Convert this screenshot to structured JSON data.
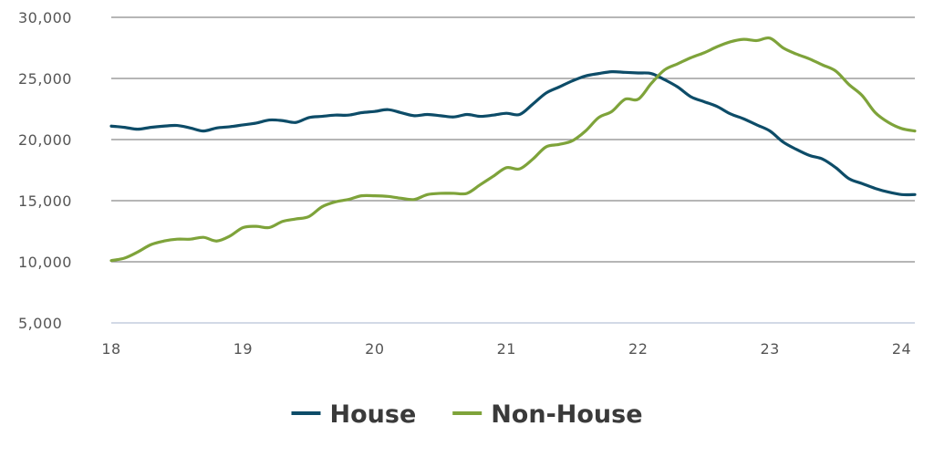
{
  "chart_data": {
    "type": "line",
    "title": "",
    "xlabel": "",
    "ylabel": "",
    "x_ticks": [
      18,
      19,
      20,
      21,
      22,
      23,
      24
    ],
    "x_tick_labels": [
      "18",
      "19",
      "20",
      "21",
      "22",
      "23",
      "24"
    ],
    "y_ticks": [
      5000,
      10000,
      15000,
      20000,
      25000,
      30000
    ],
    "y_tick_labels": [
      "5,000",
      "10,000",
      "15,000",
      "20,000",
      "25,000",
      "30,000"
    ],
    "xlim": [
      18,
      24.1
    ],
    "ylim": [
      5000,
      30000
    ],
    "grid": true,
    "legend_position": "bottom-center",
    "series": [
      {
        "name": "House",
        "color": "#0d4c68",
        "x": [
          18.0,
          18.1,
          18.2,
          18.3,
          18.4,
          18.5,
          18.6,
          18.7,
          18.8,
          18.9,
          19.0,
          19.1,
          19.2,
          19.3,
          19.4,
          19.5,
          19.6,
          19.7,
          19.8,
          19.9,
          20.0,
          20.1,
          20.2,
          20.3,
          20.4,
          20.5,
          20.6,
          20.7,
          20.8,
          20.9,
          21.0,
          21.1,
          21.2,
          21.3,
          21.4,
          21.5,
          21.6,
          21.7,
          21.8,
          21.9,
          22.0,
          22.1,
          22.2,
          22.3,
          22.4,
          22.5,
          22.6,
          22.7,
          22.8,
          22.9,
          23.0,
          23.1,
          23.2,
          23.3,
          23.4,
          23.5,
          23.6,
          23.7,
          23.8,
          23.9,
          24.0,
          24.1
        ],
        "y": [
          21100,
          21000,
          20850,
          21000,
          21100,
          21150,
          20950,
          20700,
          20950,
          21050,
          21200,
          21350,
          21600,
          21550,
          21400,
          21800,
          21900,
          22000,
          22000,
          22200,
          22300,
          22450,
          22200,
          21950,
          22050,
          21950,
          21850,
          22050,
          21900,
          22000,
          22150,
          22050,
          22900,
          23800,
          24300,
          24800,
          25200,
          25400,
          25550,
          25500,
          25450,
          25400,
          24900,
          24300,
          23500,
          23100,
          22700,
          22100,
          21700,
          21200,
          20700,
          19800,
          19200,
          18700,
          18400,
          17700,
          16800,
          16400,
          16000,
          15700,
          15500,
          15500
        ]
      },
      {
        "name": "Non-House",
        "color": "#7ea33a",
        "x": [
          18.0,
          18.1,
          18.2,
          18.3,
          18.4,
          18.5,
          18.6,
          18.7,
          18.8,
          18.9,
          19.0,
          19.1,
          19.2,
          19.3,
          19.4,
          19.5,
          19.6,
          19.7,
          19.8,
          19.9,
          20.0,
          20.1,
          20.2,
          20.3,
          20.4,
          20.5,
          20.6,
          20.7,
          20.8,
          20.9,
          21.0,
          21.1,
          21.2,
          21.3,
          21.4,
          21.5,
          21.6,
          21.7,
          21.8,
          21.9,
          22.0,
          22.1,
          22.2,
          22.3,
          22.4,
          22.5,
          22.6,
          22.7,
          22.8,
          22.9,
          23.0,
          23.1,
          23.2,
          23.3,
          23.4,
          23.5,
          23.6,
          23.7,
          23.8,
          23.9,
          24.0,
          24.1
        ],
        "y": [
          10100,
          10300,
          10800,
          11400,
          11700,
          11850,
          11850,
          12000,
          11700,
          12100,
          12800,
          12900,
          12800,
          13300,
          13500,
          13700,
          14500,
          14900,
          15100,
          15400,
          15400,
          15350,
          15200,
          15100,
          15500,
          15600,
          15600,
          15600,
          16300,
          17000,
          17700,
          17600,
          18400,
          19400,
          19600,
          19900,
          20700,
          21800,
          22300,
          23300,
          23300,
          24600,
          25700,
          26200,
          26700,
          27100,
          27600,
          28000,
          28200,
          28100,
          28300,
          27500,
          27000,
          26600,
          26100,
          25600,
          24500,
          23600,
          22200,
          21400,
          20900,
          20700
        ]
      }
    ]
  }
}
